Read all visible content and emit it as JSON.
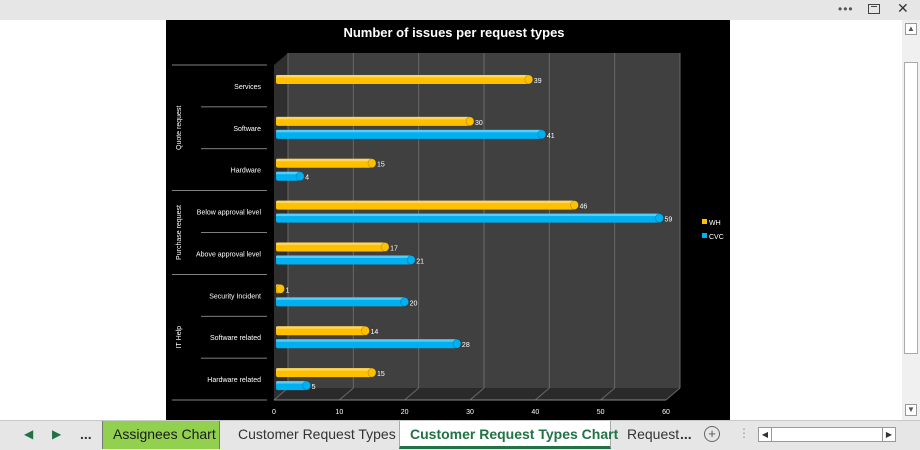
{
  "window": {
    "more_icon": "more-dots-icon",
    "restore_icon": "restore-window-icon",
    "close_icon": "close-icon"
  },
  "tabs": {
    "prev_icon": "chevron-left-icon",
    "next_icon": "chevron-right-icon",
    "overflow_label": "...",
    "items": [
      {
        "label": "Assignees Chart",
        "style": "green"
      },
      {
        "label": "Customer Request Types",
        "style": "normal"
      },
      {
        "label": "Customer Request Types Chart",
        "style": "active"
      },
      {
        "label": "Request",
        "style": "normal"
      }
    ],
    "trailing_overflow": "...",
    "add_icon": "plus-circle-icon",
    "add_symbol": "+"
  },
  "colors": {
    "wh": "#ffc000",
    "cvc": "#00b0f0",
    "chart_bg": "#000000",
    "plot_bg": "#404040",
    "tab_green": "#92d050",
    "active_tab_text": "#217346"
  },
  "chart_data": {
    "type": "bar",
    "orientation": "horizontal",
    "title": "Number of issues per request types",
    "xlim": [
      0,
      60
    ],
    "xticks": [
      0,
      10,
      20,
      30,
      40,
      50,
      60
    ],
    "grid": true,
    "legend_position": "right",
    "groups": [
      {
        "name": "Quote request",
        "categories": [
          "Services",
          "Software",
          "Hardware"
        ]
      },
      {
        "name": "Purchase request",
        "categories": [
          "Below approval level",
          "Above approval level"
        ]
      },
      {
        "name": "IT Help",
        "categories": [
          "Security Incident",
          "Software related",
          "Hardware related"
        ]
      }
    ],
    "categories": [
      "Services",
      "Software",
      "Hardware",
      "Below approval level",
      "Above approval level",
      "Security Incident",
      "Software related",
      "Hardware related"
    ],
    "series": [
      {
        "name": "WH",
        "color": "#ffc000",
        "values": [
          39,
          30,
          15,
          46,
          17,
          1,
          14,
          15
        ]
      },
      {
        "name": "CVC",
        "color": "#00b0f0",
        "values": [
          null,
          41,
          4,
          59,
          21,
          20,
          28,
          5
        ]
      }
    ]
  }
}
